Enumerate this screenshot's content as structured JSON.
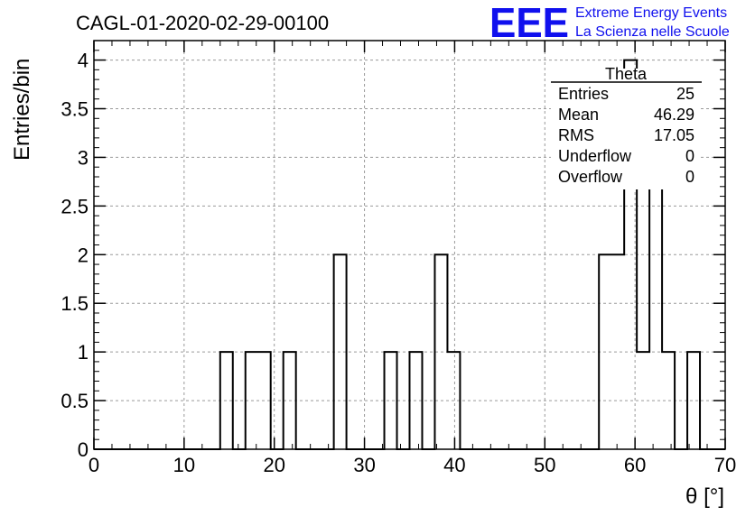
{
  "chart_data": {
    "type": "bar",
    "histogram": true,
    "title": "CAGL-01-2020-02-29-00100",
    "xlabel": "θ [°]",
    "ylabel": "Entries/bin",
    "xlim": [
      0,
      70
    ],
    "ylim": [
      0,
      4.2
    ],
    "x_ticks": [
      "0",
      "10",
      "20",
      "30",
      "40",
      "50",
      "60",
      "70"
    ],
    "y_ticks": [
      "0",
      "0.5",
      "1",
      "1.5",
      "2",
      "2.5",
      "3",
      "3.5",
      "4"
    ],
    "grid": true,
    "bin_width": 1.4,
    "bins": [
      {
        "x0": 14.0,
        "value": 1
      },
      {
        "x0": 16.8,
        "value": 1
      },
      {
        "x0": 18.2,
        "value": 1
      },
      {
        "x0": 21.0,
        "value": 1
      },
      {
        "x0": 26.6,
        "value": 2
      },
      {
        "x0": 32.2,
        "value": 1
      },
      {
        "x0": 35.0,
        "value": 1
      },
      {
        "x0": 37.8,
        "value": 2
      },
      {
        "x0": 39.2,
        "value": 1
      },
      {
        "x0": 56.0,
        "value": 2
      },
      {
        "x0": 57.4,
        "value": 2
      },
      {
        "x0": 58.8,
        "value": 4
      },
      {
        "x0": 60.2,
        "value": 1
      },
      {
        "x0": 61.6,
        "value": 3
      },
      {
        "x0": 63.0,
        "value": 1
      },
      {
        "x0": 65.8,
        "value": 1
      }
    ],
    "stats_box": {
      "name": "Theta",
      "rows": [
        {
          "label": "Entries",
          "value": "25"
        },
        {
          "label": "Mean",
          "value": "46.29"
        },
        {
          "label": "RMS",
          "value": "17.05"
        },
        {
          "label": "Underflow",
          "value": "0"
        },
        {
          "label": "Overflow",
          "value": "0"
        }
      ]
    }
  },
  "logo": {
    "mark": "EEE",
    "line1": "Extreme Energy Events",
    "line2": "La Scienza nelle Scuole",
    "color": "#1010ee"
  }
}
